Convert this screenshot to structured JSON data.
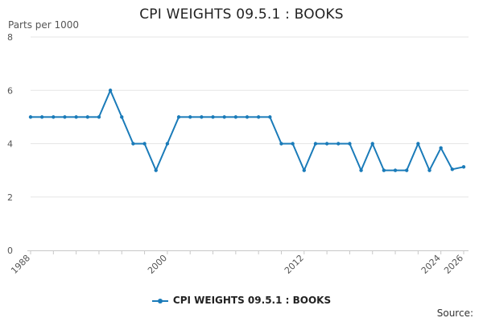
{
  "chart_data": {
    "type": "line",
    "title": "CPI WEIGHTS 09.5.1 : BOOKS",
    "y_unit": "Parts per 1000",
    "xlabel": "",
    "ylabel": "",
    "x_ticks": [
      "1988",
      "2000",
      "2012",
      "2024",
      "2026"
    ],
    "y_ticks": [
      "0",
      "2",
      "4",
      "6",
      "8"
    ],
    "ylim": [
      0,
      8
    ],
    "xlim": [
      1988,
      2026
    ],
    "grid": "horizontal",
    "legend_position": "bottom",
    "series": [
      {
        "name": "CPI WEIGHTS 09.5.1 : BOOKS",
        "color": "#1a7bb9",
        "x": [
          1988,
          1989,
          1990,
          1991,
          1992,
          1993,
          1994,
          1995,
          1996,
          1997,
          1998,
          1999,
          2000,
          2001,
          2002,
          2003,
          2004,
          2005,
          2006,
          2007,
          2008,
          2009,
          2010,
          2011,
          2012,
          2013,
          2014,
          2015,
          2016,
          2017,
          2018,
          2019,
          2020,
          2021,
          2022,
          2023,
          2024,
          2025,
          2026
        ],
        "values": [
          5,
          5,
          5,
          5,
          5,
          5,
          5,
          6,
          5,
          4,
          4,
          3,
          4,
          5,
          5,
          5,
          5,
          5,
          5,
          5,
          5,
          5,
          4,
          4,
          3,
          4,
          4,
          4,
          4,
          3,
          4,
          3,
          3,
          3,
          4,
          3,
          3.84,
          3.04,
          3.13
        ]
      }
    ]
  },
  "legend": {
    "label": "CPI WEIGHTS 09.5.1 : BOOKS"
  },
  "source": {
    "label": "Source:"
  }
}
